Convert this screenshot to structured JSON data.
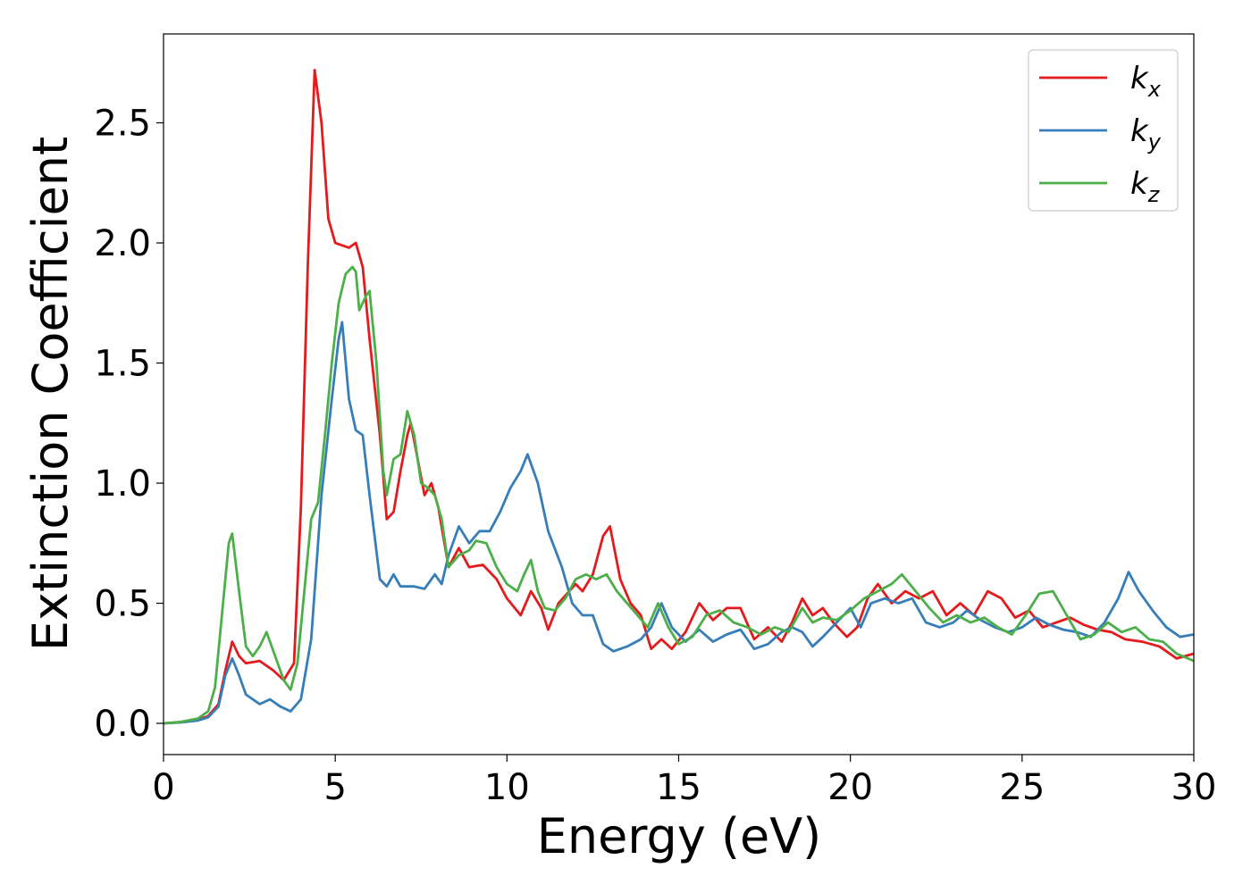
{
  "chart_data": {
    "type": "line",
    "xlabel": "Energy (eV)",
    "ylabel": "Extinction Coefficient",
    "xlim": [
      0,
      30
    ],
    "ylim": [
      -0.13,
      2.87
    ],
    "xticks": [
      0,
      5,
      10,
      15,
      20,
      25,
      30
    ],
    "xtick_labels": [
      "0",
      "5",
      "10",
      "15",
      "20",
      "25",
      "30"
    ],
    "yticks": [
      0.0,
      0.5,
      1.0,
      1.5,
      2.0,
      2.5
    ],
    "ytick_labels": [
      "0.0",
      "0.5",
      "1.0",
      "1.5",
      "2.0",
      "2.5"
    ],
    "grid": false,
    "legend_position": "top-right",
    "series": [
      {
        "name": "k",
        "subscript": "x",
        "color": "#e41a1c",
        "points": [
          [
            0,
            0
          ],
          [
            0.5,
            0.005
          ],
          [
            1,
            0.015
          ],
          [
            1.3,
            0.03
          ],
          [
            1.6,
            0.08
          ],
          [
            1.8,
            0.22
          ],
          [
            2.0,
            0.34
          ],
          [
            2.2,
            0.28
          ],
          [
            2.4,
            0.25
          ],
          [
            2.8,
            0.26
          ],
          [
            3.2,
            0.22
          ],
          [
            3.5,
            0.18
          ],
          [
            3.8,
            0.25
          ],
          [
            4.0,
            0.9
          ],
          [
            4.2,
            1.9
          ],
          [
            4.4,
            2.72
          ],
          [
            4.6,
            2.5
          ],
          [
            4.8,
            2.1
          ],
          [
            5.0,
            2.0
          ],
          [
            5.4,
            1.98
          ],
          [
            5.6,
            2.0
          ],
          [
            5.8,
            1.9
          ],
          [
            6.0,
            1.6
          ],
          [
            6.3,
            1.2
          ],
          [
            6.5,
            0.85
          ],
          [
            6.7,
            0.88
          ],
          [
            6.9,
            1.05
          ],
          [
            7.1,
            1.2
          ],
          [
            7.2,
            1.25
          ],
          [
            7.4,
            1.1
          ],
          [
            7.6,
            0.95
          ],
          [
            7.8,
            1.0
          ],
          [
            8.0,
            0.9
          ],
          [
            8.3,
            0.65
          ],
          [
            8.6,
            0.73
          ],
          [
            8.9,
            0.65
          ],
          [
            9.3,
            0.66
          ],
          [
            9.7,
            0.6
          ],
          [
            10.0,
            0.52
          ],
          [
            10.4,
            0.45
          ],
          [
            10.7,
            0.55
          ],
          [
            11.0,
            0.48
          ],
          [
            11.2,
            0.39
          ],
          [
            11.5,
            0.5
          ],
          [
            12.0,
            0.58
          ],
          [
            12.2,
            0.55
          ],
          [
            12.5,
            0.62
          ],
          [
            12.8,
            0.78
          ],
          [
            13.0,
            0.82
          ],
          [
            13.3,
            0.6
          ],
          [
            13.6,
            0.5
          ],
          [
            13.9,
            0.45
          ],
          [
            14.2,
            0.31
          ],
          [
            14.5,
            0.35
          ],
          [
            14.8,
            0.31
          ],
          [
            15.2,
            0.38
          ],
          [
            15.6,
            0.5
          ],
          [
            16.0,
            0.43
          ],
          [
            16.4,
            0.48
          ],
          [
            16.8,
            0.48
          ],
          [
            17.2,
            0.35
          ],
          [
            17.6,
            0.4
          ],
          [
            18.0,
            0.34
          ],
          [
            18.3,
            0.42
          ],
          [
            18.6,
            0.52
          ],
          [
            18.9,
            0.45
          ],
          [
            19.2,
            0.48
          ],
          [
            19.5,
            0.42
          ],
          [
            19.9,
            0.36
          ],
          [
            20.2,
            0.4
          ],
          [
            20.5,
            0.52
          ],
          [
            20.8,
            0.58
          ],
          [
            21.2,
            0.5
          ],
          [
            21.6,
            0.55
          ],
          [
            22.0,
            0.52
          ],
          [
            22.4,
            0.55
          ],
          [
            22.8,
            0.45
          ],
          [
            23.2,
            0.5
          ],
          [
            23.6,
            0.45
          ],
          [
            24.0,
            0.55
          ],
          [
            24.4,
            0.52
          ],
          [
            24.8,
            0.44
          ],
          [
            25.2,
            0.47
          ],
          [
            25.6,
            0.4
          ],
          [
            26.0,
            0.42
          ],
          [
            26.4,
            0.44
          ],
          [
            26.8,
            0.41
          ],
          [
            27.2,
            0.39
          ],
          [
            27.6,
            0.38
          ],
          [
            28.0,
            0.35
          ],
          [
            28.5,
            0.34
          ],
          [
            29.0,
            0.32
          ],
          [
            29.5,
            0.27
          ],
          [
            30,
            0.29
          ]
        ]
      },
      {
        "name": "k",
        "subscript": "y",
        "color": "#377eb8",
        "points": [
          [
            0,
            0
          ],
          [
            0.5,
            0.004
          ],
          [
            1,
            0.012
          ],
          [
            1.3,
            0.025
          ],
          [
            1.6,
            0.07
          ],
          [
            1.8,
            0.2
          ],
          [
            2.0,
            0.27
          ],
          [
            2.2,
            0.2
          ],
          [
            2.4,
            0.12
          ],
          [
            2.8,
            0.08
          ],
          [
            3.1,
            0.1
          ],
          [
            3.4,
            0.07
          ],
          [
            3.7,
            0.05
          ],
          [
            4.0,
            0.1
          ],
          [
            4.3,
            0.35
          ],
          [
            4.6,
            0.95
          ],
          [
            4.9,
            1.35
          ],
          [
            5.1,
            1.6
          ],
          [
            5.2,
            1.67
          ],
          [
            5.4,
            1.35
          ],
          [
            5.6,
            1.22
          ],
          [
            5.8,
            1.2
          ],
          [
            6.0,
            0.95
          ],
          [
            6.3,
            0.6
          ],
          [
            6.5,
            0.57
          ],
          [
            6.7,
            0.62
          ],
          [
            6.9,
            0.57
          ],
          [
            7.3,
            0.57
          ],
          [
            7.6,
            0.56
          ],
          [
            7.9,
            0.62
          ],
          [
            8.1,
            0.58
          ],
          [
            8.3,
            0.7
          ],
          [
            8.6,
            0.82
          ],
          [
            8.9,
            0.75
          ],
          [
            9.2,
            0.8
          ],
          [
            9.5,
            0.8
          ],
          [
            9.8,
            0.88
          ],
          [
            10.1,
            0.98
          ],
          [
            10.4,
            1.05
          ],
          [
            10.6,
            1.12
          ],
          [
            10.9,
            1.0
          ],
          [
            11.2,
            0.8
          ],
          [
            11.6,
            0.65
          ],
          [
            11.9,
            0.5
          ],
          [
            12.2,
            0.45
          ],
          [
            12.5,
            0.45
          ],
          [
            12.8,
            0.33
          ],
          [
            13.1,
            0.3
          ],
          [
            13.5,
            0.32
          ],
          [
            13.9,
            0.35
          ],
          [
            14.2,
            0.4
          ],
          [
            14.5,
            0.5
          ],
          [
            14.8,
            0.4
          ],
          [
            15.2,
            0.34
          ],
          [
            15.6,
            0.39
          ],
          [
            16.0,
            0.34
          ],
          [
            16.4,
            0.37
          ],
          [
            16.8,
            0.39
          ],
          [
            17.2,
            0.31
          ],
          [
            17.6,
            0.33
          ],
          [
            18.0,
            0.38
          ],
          [
            18.3,
            0.4
          ],
          [
            18.6,
            0.38
          ],
          [
            18.9,
            0.32
          ],
          [
            19.2,
            0.36
          ],
          [
            19.6,
            0.42
          ],
          [
            20.0,
            0.48
          ],
          [
            20.3,
            0.4
          ],
          [
            20.6,
            0.5
          ],
          [
            21.0,
            0.52
          ],
          [
            21.4,
            0.5
          ],
          [
            21.8,
            0.52
          ],
          [
            22.2,
            0.42
          ],
          [
            22.6,
            0.4
          ],
          [
            23.0,
            0.42
          ],
          [
            23.4,
            0.47
          ],
          [
            23.8,
            0.43
          ],
          [
            24.2,
            0.4
          ],
          [
            24.6,
            0.38
          ],
          [
            25.0,
            0.4
          ],
          [
            25.4,
            0.44
          ],
          [
            25.8,
            0.41
          ],
          [
            26.2,
            0.39
          ],
          [
            26.6,
            0.38
          ],
          [
            27.0,
            0.36
          ],
          [
            27.4,
            0.42
          ],
          [
            27.8,
            0.52
          ],
          [
            28.1,
            0.63
          ],
          [
            28.4,
            0.55
          ],
          [
            28.8,
            0.47
          ],
          [
            29.2,
            0.4
          ],
          [
            29.6,
            0.36
          ],
          [
            30,
            0.37
          ]
        ]
      },
      {
        "name": "k",
        "subscript": "z",
        "color": "#4daf4a",
        "points": [
          [
            0,
            0
          ],
          [
            0.5,
            0.006
          ],
          [
            1,
            0.02
          ],
          [
            1.3,
            0.05
          ],
          [
            1.5,
            0.15
          ],
          [
            1.7,
            0.45
          ],
          [
            1.9,
            0.75
          ],
          [
            2.0,
            0.79
          ],
          [
            2.2,
            0.55
          ],
          [
            2.4,
            0.32
          ],
          [
            2.6,
            0.28
          ],
          [
            2.8,
            0.32
          ],
          [
            3.0,
            0.38
          ],
          [
            3.2,
            0.3
          ],
          [
            3.5,
            0.18
          ],
          [
            3.7,
            0.14
          ],
          [
            3.9,
            0.25
          ],
          [
            4.1,
            0.55
          ],
          [
            4.3,
            0.85
          ],
          [
            4.5,
            0.92
          ],
          [
            4.7,
            1.2
          ],
          [
            4.9,
            1.5
          ],
          [
            5.1,
            1.75
          ],
          [
            5.3,
            1.87
          ],
          [
            5.5,
            1.9
          ],
          [
            5.6,
            1.88
          ],
          [
            5.7,
            1.72
          ],
          [
            5.9,
            1.78
          ],
          [
            6.0,
            1.8
          ],
          [
            6.2,
            1.5
          ],
          [
            6.4,
            1.05
          ],
          [
            6.5,
            0.95
          ],
          [
            6.7,
            1.1
          ],
          [
            6.9,
            1.12
          ],
          [
            7.1,
            1.3
          ],
          [
            7.3,
            1.2
          ],
          [
            7.5,
            1.0
          ],
          [
            7.7,
            0.98
          ],
          [
            7.9,
            0.95
          ],
          [
            8.1,
            0.85
          ],
          [
            8.3,
            0.65
          ],
          [
            8.6,
            0.7
          ],
          [
            8.9,
            0.72
          ],
          [
            9.1,
            0.76
          ],
          [
            9.4,
            0.75
          ],
          [
            9.7,
            0.65
          ],
          [
            10.0,
            0.58
          ],
          [
            10.3,
            0.55
          ],
          [
            10.5,
            0.62
          ],
          [
            10.7,
            0.68
          ],
          [
            10.9,
            0.55
          ],
          [
            11.1,
            0.48
          ],
          [
            11.4,
            0.47
          ],
          [
            11.7,
            0.52
          ],
          [
            12.0,
            0.6
          ],
          [
            12.3,
            0.62
          ],
          [
            12.6,
            0.6
          ],
          [
            12.9,
            0.62
          ],
          [
            13.2,
            0.55
          ],
          [
            13.5,
            0.5
          ],
          [
            13.8,
            0.45
          ],
          [
            14.1,
            0.4
          ],
          [
            14.4,
            0.5
          ],
          [
            14.7,
            0.4
          ],
          [
            15.0,
            0.33
          ],
          [
            15.4,
            0.36
          ],
          [
            15.8,
            0.45
          ],
          [
            16.2,
            0.47
          ],
          [
            16.6,
            0.42
          ],
          [
            17.0,
            0.4
          ],
          [
            17.4,
            0.37
          ],
          [
            17.8,
            0.4
          ],
          [
            18.2,
            0.38
          ],
          [
            18.6,
            0.48
          ],
          [
            18.9,
            0.42
          ],
          [
            19.2,
            0.44
          ],
          [
            19.6,
            0.43
          ],
          [
            20.0,
            0.47
          ],
          [
            20.4,
            0.52
          ],
          [
            20.8,
            0.55
          ],
          [
            21.2,
            0.58
          ],
          [
            21.5,
            0.62
          ],
          [
            21.9,
            0.55
          ],
          [
            22.3,
            0.48
          ],
          [
            22.7,
            0.42
          ],
          [
            23.1,
            0.45
          ],
          [
            23.5,
            0.42
          ],
          [
            23.9,
            0.44
          ],
          [
            24.3,
            0.4
          ],
          [
            24.7,
            0.37
          ],
          [
            25.1,
            0.45
          ],
          [
            25.5,
            0.54
          ],
          [
            25.9,
            0.55
          ],
          [
            26.3,
            0.45
          ],
          [
            26.7,
            0.35
          ],
          [
            27.1,
            0.37
          ],
          [
            27.5,
            0.42
          ],
          [
            27.9,
            0.38
          ],
          [
            28.3,
            0.4
          ],
          [
            28.7,
            0.35
          ],
          [
            29.1,
            0.34
          ],
          [
            29.5,
            0.29
          ],
          [
            30,
            0.26
          ]
        ]
      }
    ]
  }
}
